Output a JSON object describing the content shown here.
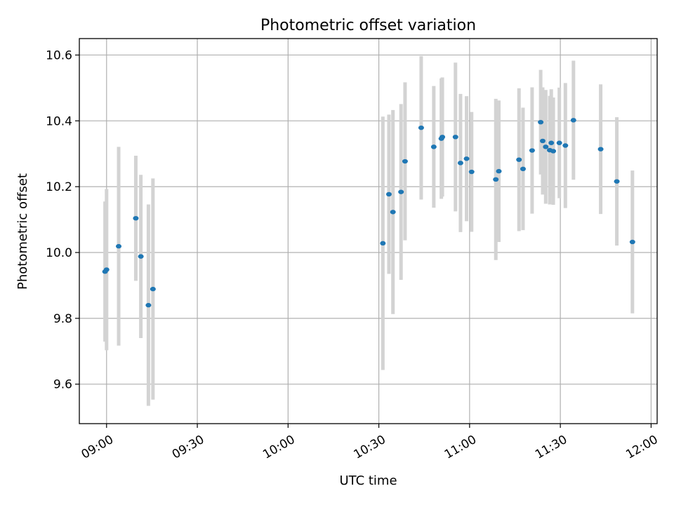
{
  "chart_data": {
    "type": "scatter",
    "title": "Photometric offset variation",
    "xlabel": "UTC time",
    "ylabel": "Photometric offset",
    "x_ticks": [
      "09:00",
      "09:30",
      "10:00",
      "10:30",
      "11:00",
      "11:30",
      "12:00"
    ],
    "y_ticks": [
      "9.6",
      "9.8",
      "10.0",
      "10.2",
      "10.4",
      "10.6"
    ],
    "xlim": [
      "08:51",
      "12:02"
    ],
    "ylim": [
      9.48,
      10.65
    ],
    "grid": true,
    "colors": {
      "marker": "#1f77b4",
      "errorbar": "#d3d3d3"
    },
    "points": [
      {
        "t": "08:59:30",
        "y": 9.942,
        "err": 0.213
      },
      {
        "t": "09:00:00",
        "y": 9.948,
        "err": 0.245
      },
      {
        "t": "09:04:00",
        "y": 10.019,
        "err": 0.302
      },
      {
        "t": "09:09:40",
        "y": 10.104,
        "err": 0.19
      },
      {
        "t": "09:11:20",
        "y": 9.988,
        "err": 0.248
      },
      {
        "t": "09:13:50",
        "y": 9.84,
        "err": 0.306
      },
      {
        "t": "09:15:20",
        "y": 9.889,
        "err": 0.336
      },
      {
        "t": "10:31:20",
        "y": 10.028,
        "err": 0.385
      },
      {
        "t": "10:33:20",
        "y": 10.177,
        "err": 0.242
      },
      {
        "t": "10:34:40",
        "y": 10.123,
        "err": 0.31
      },
      {
        "t": "10:37:20",
        "y": 10.184,
        "err": 0.267
      },
      {
        "t": "10:38:40",
        "y": 10.277,
        "err": 0.24
      },
      {
        "t": "10:44:00",
        "y": 10.379,
        "err": 0.218
      },
      {
        "t": "10:48:10",
        "y": 10.321,
        "err": 0.185
      },
      {
        "t": "10:50:40",
        "y": 10.346,
        "err": 0.183
      },
      {
        "t": "10:51:00",
        "y": 10.351,
        "err": 0.181
      },
      {
        "t": "10:55:20",
        "y": 10.351,
        "err": 0.226
      },
      {
        "t": "10:57:00",
        "y": 10.272,
        "err": 0.21
      },
      {
        "t": "10:59:00",
        "y": 10.285,
        "err": 0.19
      },
      {
        "t": "11:00:40",
        "y": 10.245,
        "err": 0.182
      },
      {
        "t": "11:08:40",
        "y": 10.222,
        "err": 0.245
      },
      {
        "t": "11:09:40",
        "y": 10.247,
        "err": 0.215
      },
      {
        "t": "11:16:20",
        "y": 10.282,
        "err": 0.217
      },
      {
        "t": "11:17:40",
        "y": 10.254,
        "err": 0.186
      },
      {
        "t": "11:20:40",
        "y": 10.31,
        "err": 0.192
      },
      {
        "t": "11:23:30",
        "y": 10.396,
        "err": 0.159
      },
      {
        "t": "11:24:10",
        "y": 10.339,
        "err": 0.163
      },
      {
        "t": "11:25:10",
        "y": 10.321,
        "err": 0.173
      },
      {
        "t": "11:26:30",
        "y": 10.311,
        "err": 0.165
      },
      {
        "t": "11:27:00",
        "y": 10.333,
        "err": 0.163
      },
      {
        "t": "11:27:40",
        "y": 10.308,
        "err": 0.163
      },
      {
        "t": "11:29:40",
        "y": 10.333,
        "err": 0.168
      },
      {
        "t": "11:31:40",
        "y": 10.325,
        "err": 0.19
      },
      {
        "t": "11:34:20",
        "y": 10.402,
        "err": 0.181
      },
      {
        "t": "11:43:20",
        "y": 10.314,
        "err": 0.197
      },
      {
        "t": "11:48:40",
        "y": 10.216,
        "err": 0.195
      },
      {
        "t": "11:53:50",
        "y": 10.032,
        "err": 0.217
      }
    ]
  }
}
